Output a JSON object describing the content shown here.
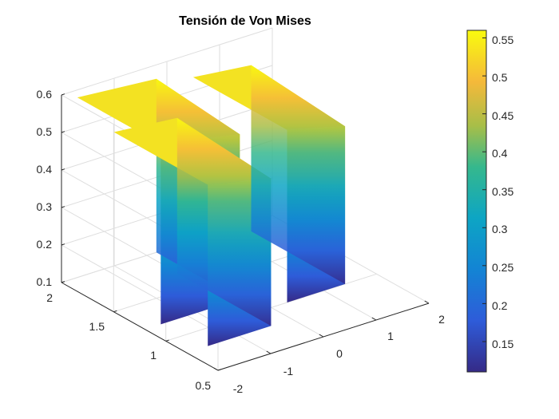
{
  "chart_data": {
    "type": "surface",
    "title": "Tensión de Von Mises",
    "xlabel": "",
    "ylabel": "",
    "zlabel": "",
    "xlim": [
      -2,
      2
    ],
    "ylim": [
      0.5,
      2
    ],
    "zlim": [
      0.1,
      0.6
    ],
    "x_ticks": [
      "-2",
      "-1",
      "0",
      "1",
      "2"
    ],
    "y_ticks": [
      "0.5",
      "1",
      "1.5",
      "2"
    ],
    "z_ticks": [
      "0.1",
      "0.2",
      "0.3",
      "0.4",
      "0.5",
      "0.6"
    ],
    "grid": true,
    "colormap": "parula",
    "colorbar": {
      "location": "right",
      "range": [
        0.11,
        0.56
      ],
      "ticks": [
        "0.15",
        "0.2",
        "0.25",
        "0.3",
        "0.35",
        "0.4",
        "0.45",
        "0.5",
        "0.55"
      ]
    },
    "surfaces": [
      {
        "x_range": [
          -1.6,
          -0.4
        ],
        "y_range": [
          0.8,
          1.7
        ],
        "z_base": 0.1,
        "z_top": 0.53
      },
      {
        "x_range": [
          -1.7,
          -0.2
        ],
        "y_range": [
          1.2,
          2.0
        ],
        "z_base": 0.1,
        "z_top": 0.58
      },
      {
        "x_range": [
          0.3,
          1.4
        ],
        "y_range": [
          1.0,
          1.9
        ],
        "z_base": 0.1,
        "z_top": 0.56
      }
    ]
  }
}
